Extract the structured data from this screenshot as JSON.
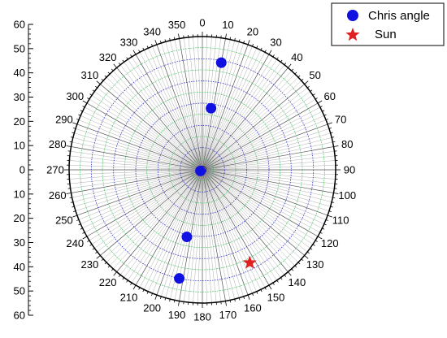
{
  "chart_data": {
    "type": "scatter",
    "projection": "polar",
    "title": "",
    "angular_axis": {
      "direction": "clockwise",
      "zero_at": "top",
      "unit": "degrees",
      "tick_step": 10,
      "ticks": [
        0,
        10,
        20,
        30,
        40,
        50,
        60,
        70,
        80,
        90,
        100,
        110,
        120,
        130,
        140,
        150,
        160,
        170,
        180,
        190,
        200,
        210,
        220,
        230,
        240,
        250,
        260,
        270,
        280,
        290,
        300,
        310,
        320,
        330,
        340,
        350
      ]
    },
    "radial_axis": {
      "range": [
        0,
        60
      ],
      "scale_ticks": [
        "60",
        "50",
        "40",
        "30",
        "20",
        "10",
        "0",
        "10",
        "20",
        "30",
        "40",
        "50",
        "60"
      ],
      "major_circles": [
        10,
        20,
        30,
        40,
        50
      ],
      "minor_circles": [
        5,
        15,
        25,
        35,
        45,
        55
      ]
    },
    "grid": true,
    "legend_position": "top-right",
    "series": [
      {
        "name": "Chris angle",
        "marker": "circle",
        "color": "#1010e0",
        "points": [
          {
            "theta": 10,
            "r": 49
          },
          {
            "theta": 8,
            "r": 28
          },
          {
            "theta": 240,
            "r": 1
          },
          {
            "theta": 193,
            "r": 31
          },
          {
            "theta": 192,
            "r": 50
          }
        ]
      },
      {
        "name": "Sun",
        "marker": "star",
        "color": "#e02020",
        "points": [
          {
            "theta": 153,
            "r": 47
          }
        ]
      }
    ]
  },
  "legend": {
    "items": [
      {
        "label": "Chris angle",
        "marker": "circle",
        "color": "#1010e0"
      },
      {
        "label": "Sun",
        "marker": "star",
        "color": "#e02020"
      }
    ]
  }
}
